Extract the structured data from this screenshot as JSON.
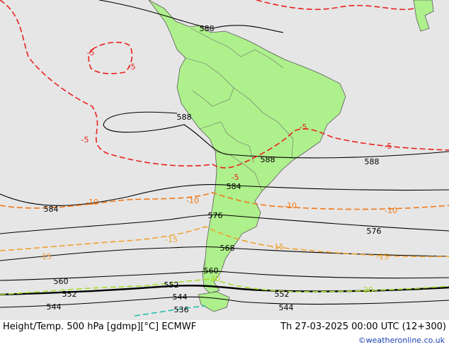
{
  "map": {
    "contour_labels": {
      "height": [
        "588",
        "588",
        "588",
        "588",
        "584",
        "584",
        "576",
        "576",
        "568",
        "560",
        "560",
        "552",
        "552",
        "552",
        "544",
        "544",
        "544",
        "536"
      ],
      "temperature": [
        "-5",
        "-5",
        "-5",
        "-5",
        "-5",
        "-5",
        "-10",
        "-10",
        "-10",
        "-10",
        "-15",
        "-15",
        "-15",
        "-15",
        "-20",
        "-20"
      ]
    },
    "colors": {
      "ocean": "#e6e6e6",
      "land": "#aef08c",
      "height_contour": "#000000",
      "temp_m5": "#e8221e",
      "temp_m10": "#f07818",
      "temp_m15": "#f0a030",
      "temp_m20": "#a8dc30",
      "temp_m25": "#20c0a8"
    }
  },
  "footer": {
    "title": "Height/Temp. 500 hPa [gdmp][°C] ECMWF",
    "valid_time": "Th 27-03-2025 00:00 UTC (12+300)",
    "credit": "©weatheronline.co.uk"
  }
}
